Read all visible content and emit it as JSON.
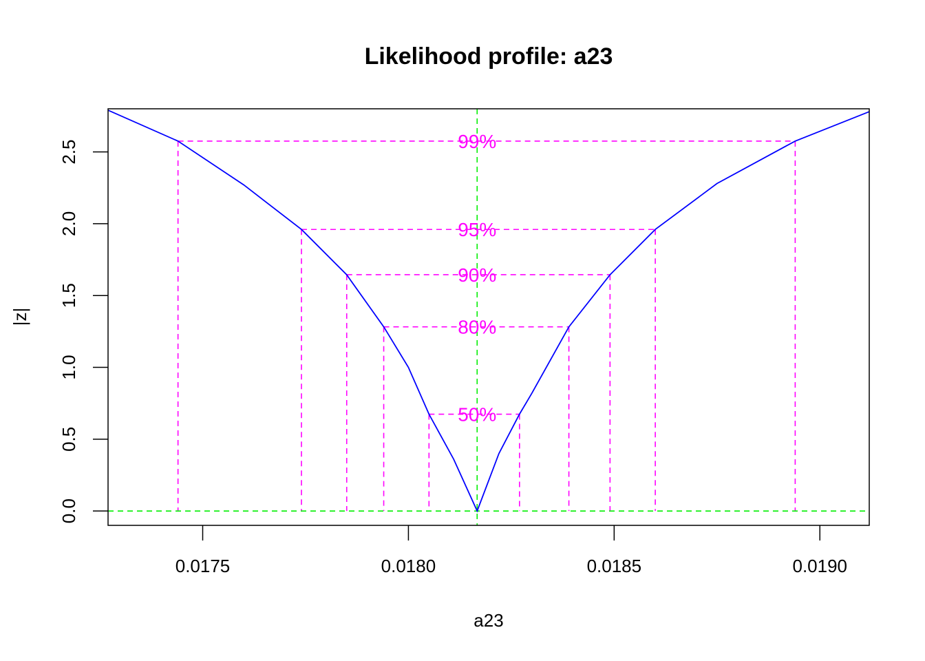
{
  "chart_data": {
    "type": "line",
    "title": "Likelihood profile: a23",
    "xlabel": "a23",
    "ylabel": "|z|",
    "xlim": [
      0.01727,
      0.01912
    ],
    "ylim": [
      -0.1,
      2.8
    ],
    "x_ticks": [
      0.0175,
      0.018,
      0.0185,
      0.019
    ],
    "x_tick_labels": [
      "0.0175",
      "0.0180",
      "0.0185",
      "0.0190"
    ],
    "y_ticks": [
      0.0,
      0.5,
      1.0,
      1.5,
      2.0,
      2.5
    ],
    "y_tick_labels": [
      "0.0",
      "0.5",
      "1.0",
      "1.5",
      "2.0",
      "2.5"
    ],
    "estimate": 0.018167,
    "colors": {
      "profile": "#0000ff",
      "levels": "#ff00ff",
      "reference": "#00ee00",
      "axes": "#000000"
    },
    "series": [
      {
        "x": [
          0.01727,
          0.01744,
          0.0176,
          0.01774,
          0.01785,
          0.01794,
          0.018,
          0.01805,
          0.01811,
          0.018167,
          0.01822,
          0.01827,
          0.0183,
          0.01839,
          0.01849,
          0.0186,
          0.01875,
          0.01894,
          0.01912
        ],
        "y": [
          2.79,
          2.575,
          2.27,
          1.96,
          1.645,
          1.282,
          1.0,
          0.674,
          0.36,
          0.0,
          0.4,
          0.674,
          0.82,
          1.282,
          1.645,
          1.96,
          2.28,
          2.575,
          2.78
        ]
      }
    ],
    "confidence_levels": [
      {
        "label": "50%",
        "z": 0.674,
        "lower": 0.01805,
        "upper": 0.01827
      },
      {
        "label": "80%",
        "z": 1.282,
        "lower": 0.01794,
        "upper": 0.01839
      },
      {
        "label": "90%",
        "z": 1.645,
        "lower": 0.01785,
        "upper": 0.01849
      },
      {
        "label": "95%",
        "z": 1.96,
        "lower": 0.01774,
        "upper": 0.0186
      },
      {
        "label": "99%",
        "z": 2.575,
        "lower": 0.01744,
        "upper": 0.01894
      }
    ]
  }
}
